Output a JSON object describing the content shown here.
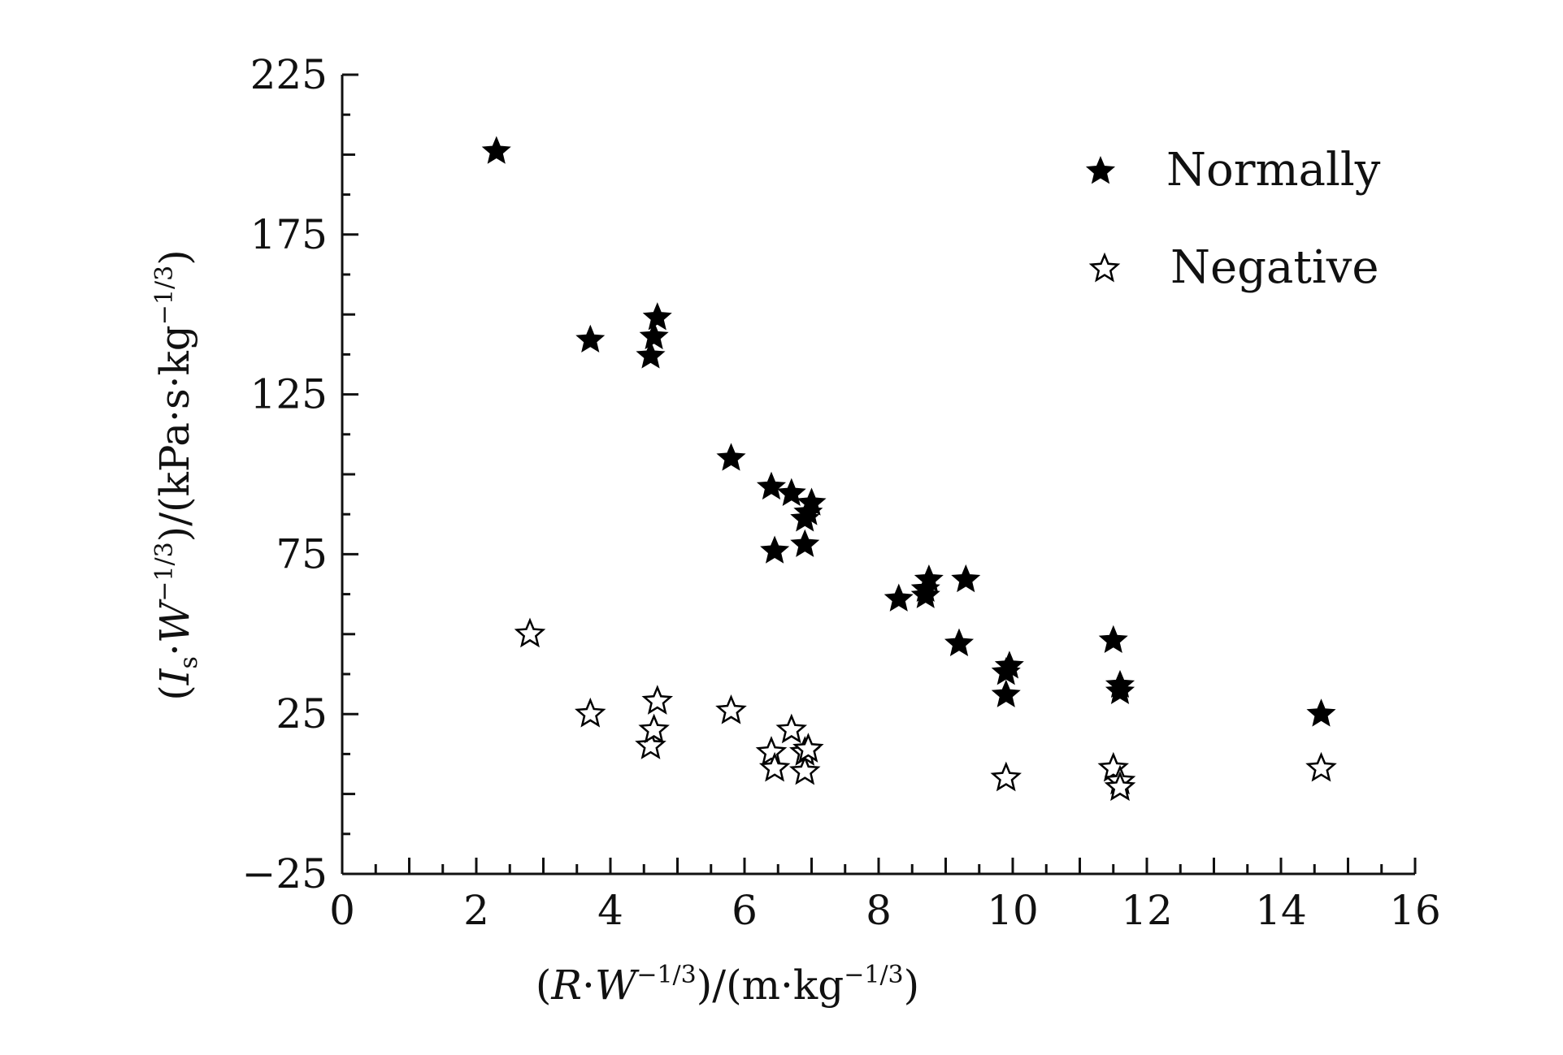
{
  "chart_data": {
    "type": "scatter",
    "title": "",
    "xlabel_parts": {
      "open": "(",
      "var1": "R",
      "dot1": "·",
      "var2": "W",
      "exp1": "−1/3",
      "mid": ")/(m·kg",
      "exp2": "−1/3",
      "close": ")"
    },
    "ylabel_parts": {
      "open": "(",
      "var1": "I",
      "sub1": "s",
      "dot1": "·",
      "var2": "W",
      "exp1": "−1/3",
      "mid": ")/(kPa·s·kg",
      "exp2": "−1/3",
      "close": ")"
    },
    "xlim": [
      0,
      16
    ],
    "ylim": [
      -25,
      225
    ],
    "x_ticks": [
      0,
      2,
      4,
      6,
      8,
      10,
      12,
      14,
      16
    ],
    "y_ticks": [
      -25,
      25,
      75,
      125,
      175,
      225
    ],
    "x_tick_labels": [
      "0",
      "2",
      "4",
      "6",
      "8",
      "10",
      "12",
      "14",
      "16"
    ],
    "y_tick_labels": [
      "−25",
      "25",
      "75",
      "125",
      "175",
      "225"
    ],
    "grid": false,
    "legend_position": "top-right",
    "series": [
      {
        "name": "Normally",
        "marker": "filled-star",
        "color": "#000000",
        "points": [
          [
            2.3,
            201
          ],
          [
            3.7,
            142
          ],
          [
            4.6,
            137
          ],
          [
            4.65,
            143
          ],
          [
            4.7,
            149
          ],
          [
            5.8,
            105
          ],
          [
            6.4,
            96
          ],
          [
            6.45,
            76
          ],
          [
            6.7,
            94
          ],
          [
            6.9,
            78
          ],
          [
            6.9,
            86
          ],
          [
            6.95,
            88
          ],
          [
            7.0,
            91
          ],
          [
            8.3,
            61
          ],
          [
            8.7,
            62
          ],
          [
            8.7,
            64
          ],
          [
            8.75,
            67
          ],
          [
            9.2,
            47
          ],
          [
            9.3,
            67
          ],
          [
            9.9,
            31
          ],
          [
            9.9,
            38
          ],
          [
            9.95,
            40
          ],
          [
            11.5,
            48
          ],
          [
            11.6,
            32
          ],
          [
            11.6,
            34
          ],
          [
            14.6,
            25
          ]
        ]
      },
      {
        "name": "Negative",
        "marker": "hollow-star",
        "color": "#000000",
        "points": [
          [
            2.8,
            50
          ],
          [
            3.7,
            25
          ],
          [
            4.6,
            15
          ],
          [
            4.65,
            20
          ],
          [
            4.7,
            29
          ],
          [
            5.8,
            26
          ],
          [
            6.4,
            13
          ],
          [
            6.45,
            8
          ],
          [
            6.7,
            20
          ],
          [
            6.9,
            7
          ],
          [
            6.9,
            13
          ],
          [
            6.95,
            14
          ],
          [
            9.9,
            5
          ],
          [
            11.5,
            8
          ],
          [
            11.6,
            4
          ],
          [
            11.6,
            2
          ],
          [
            14.6,
            8
          ]
        ]
      }
    ]
  }
}
